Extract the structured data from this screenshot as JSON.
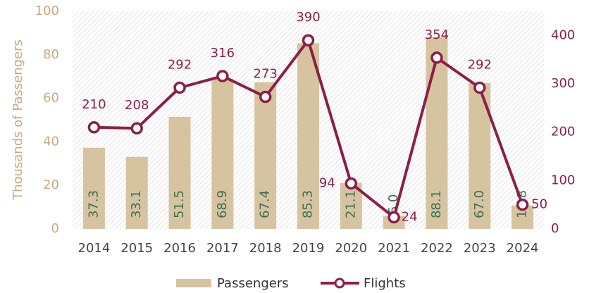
{
  "chart_data": {
    "type": "combo",
    "y_label": "Thousands of Passengers",
    "categories": [
      "2014",
      "2015",
      "2016",
      "2017",
      "2018",
      "2019",
      "2020",
      "2021",
      "2022",
      "2023",
      "2024"
    ],
    "series": [
      {
        "name": "Passengers",
        "type": "bar",
        "color": "#d6c4a0",
        "label_color": "#3f6e55",
        "values": [
          37.3,
          33.1,
          51.5,
          68.9,
          67.4,
          85.3,
          21.1,
          6.0,
          88.1,
          67.0,
          10.8
        ],
        "value_labels": [
          "37.3",
          "33.1",
          "51.5",
          "68.9",
          "67.4",
          "85.3",
          "21.1",
          "6.0",
          "88.1",
          "67.0",
          "10.8"
        ]
      },
      {
        "name": "Flights",
        "type": "line",
        "axis": "y2",
        "color": "#8c1f47",
        "values": [
          210,
          208,
          292,
          316,
          273,
          390,
          94,
          24,
          354,
          292,
          50
        ]
      }
    ],
    "ylim": [
      0,
      100
    ],
    "yticks": [
      0,
      20,
      40,
      60,
      80,
      100
    ],
    "y2lim": [
      0,
      450
    ],
    "y2ticks": [
      0,
      100,
      200,
      300,
      400
    ],
    "grid": false
  }
}
